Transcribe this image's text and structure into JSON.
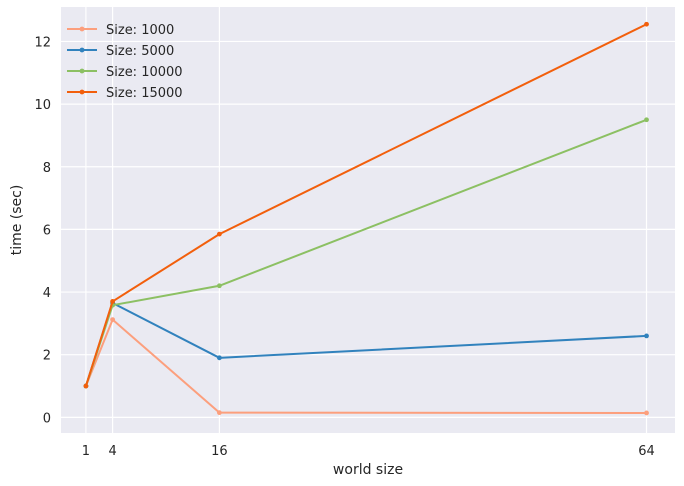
{
  "chart_data": {
    "type": "line",
    "xlabel": "world size",
    "ylabel": "time (sec)",
    "x": [
      1,
      4,
      16,
      64
    ],
    "x_ticks": [
      1,
      4,
      16,
      64
    ],
    "y_ticks": [
      0,
      2,
      4,
      6,
      8,
      10,
      12
    ],
    "xlim": [
      -1.8,
      67.2
    ],
    "ylim": [
      -0.5,
      13.1
    ],
    "grid": true,
    "legend_position": "top-left",
    "series": [
      {
        "name": "Size: 1000",
        "color": "#fc9f7d",
        "values": [
          1.0,
          3.12,
          0.15,
          0.14
        ]
      },
      {
        "name": "Size: 5000",
        "color": "#3182bd",
        "values": [
          1.0,
          3.65,
          1.9,
          2.6
        ]
      },
      {
        "name": "Size: 10000",
        "color": "#8cc063",
        "values": [
          1.0,
          3.58,
          4.2,
          9.5
        ]
      },
      {
        "name": "Size: 15000",
        "color": "#f25f0c",
        "values": [
          1.0,
          3.7,
          5.85,
          12.55
        ]
      }
    ]
  }
}
